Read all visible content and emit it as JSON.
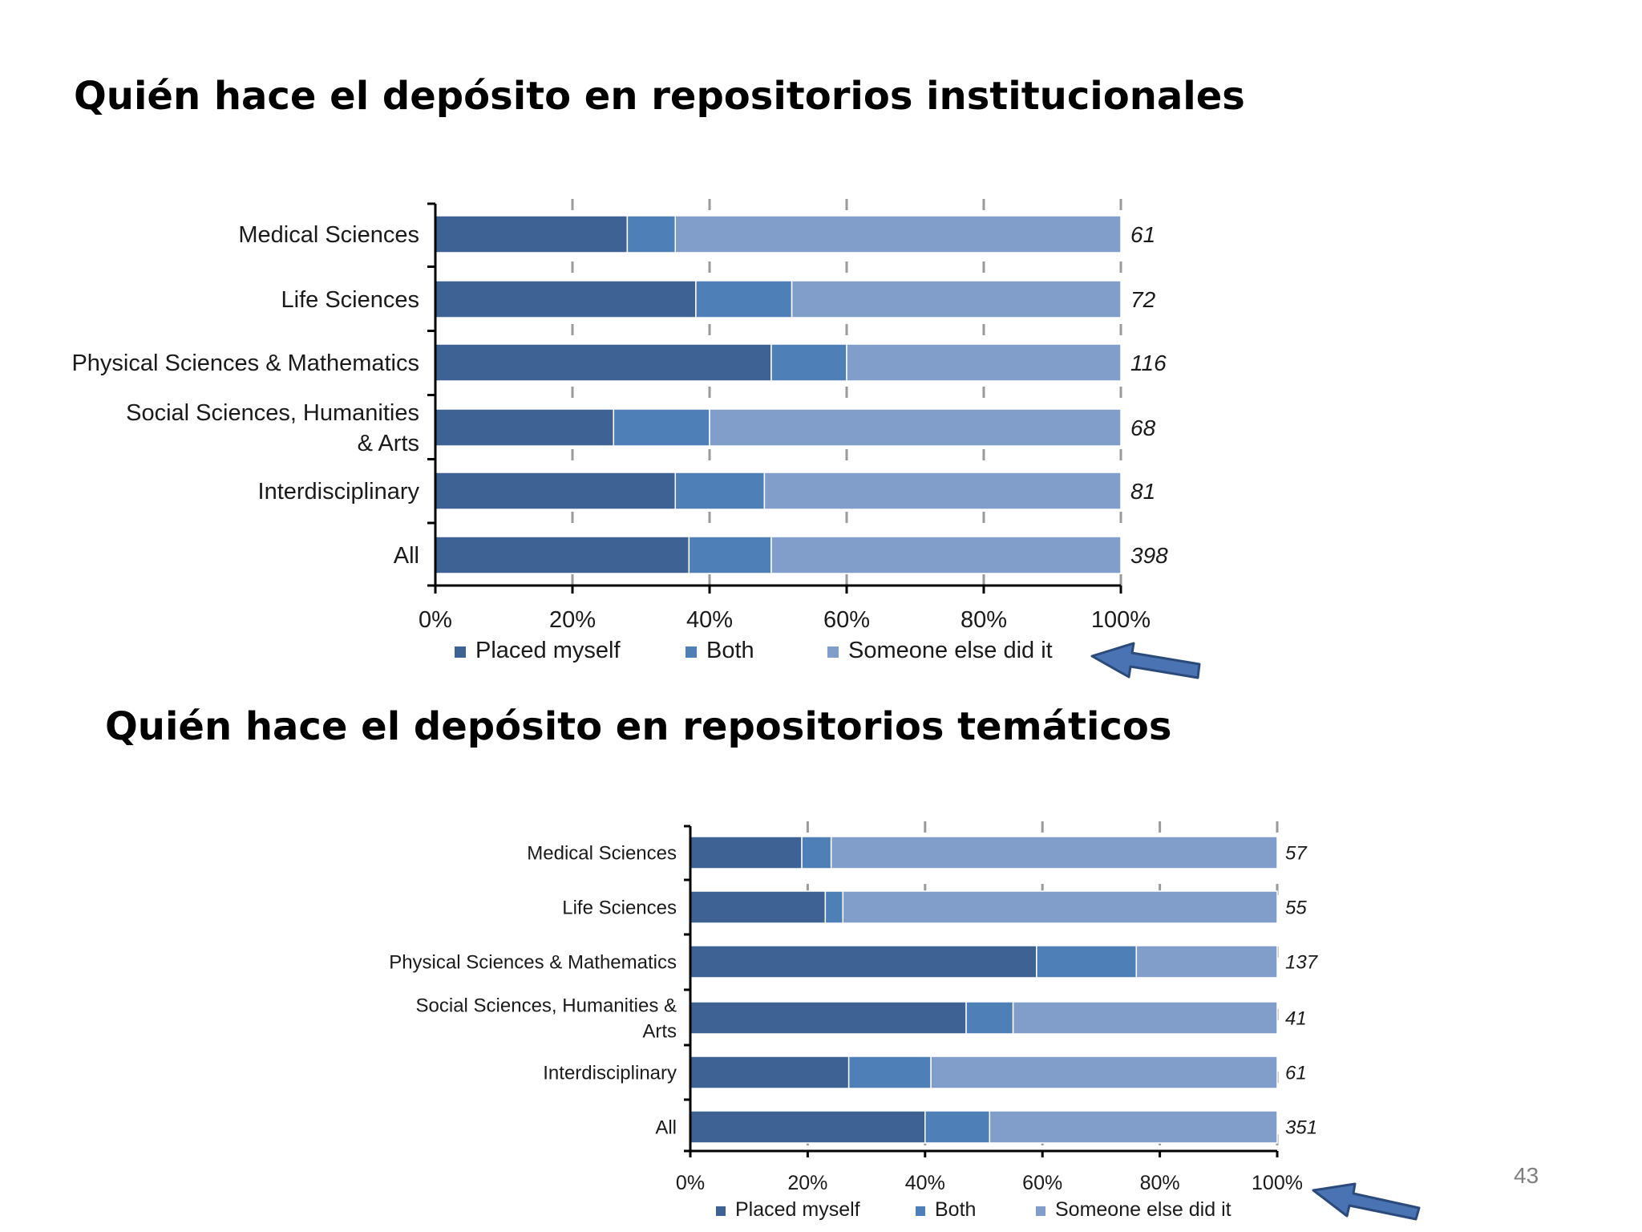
{
  "slide": {
    "title_institutional": "Quién hace el depósito  en repositorios institucionales",
    "title_thematic": "Quién hace el depósito  en repositorios  temáticos",
    "page_number": "43"
  },
  "colors": {
    "placed_myself": "#3d6293",
    "both": "#4f7fb7",
    "someone_else": "#819dca",
    "axis": "#000000",
    "gridline": "#9a9a9a",
    "arrow_fill": "#4a73b3",
    "arrow_stroke": "#2b4a7a"
  },
  "chart_data": [
    {
      "type": "bar",
      "orientation": "horizontal",
      "stacked": true,
      "title": "Quién hace el depósito  en repositorios institucionales",
      "categories": [
        "Medical Sciences",
        "Life Sciences",
        "Physical Sciences & Mathematics",
        "Social Sciences, Humanities & Arts",
        "Interdisciplinary",
        "All"
      ],
      "category_lines": [
        [
          "Medical Sciences"
        ],
        [
          "Life Sciences"
        ],
        [
          "Physical Sciences & Mathematics"
        ],
        [
          "Social Sciences, Humanities",
          "& Arts"
        ],
        [
          "Interdisciplinary"
        ],
        [
          "All"
        ]
      ],
      "series": [
        {
          "name": "Placed myself",
          "values": [
            28,
            38,
            49,
            26,
            35,
            37
          ]
        },
        {
          "name": "Both",
          "values": [
            7,
            14,
            11,
            14,
            13,
            12
          ]
        },
        {
          "name": "Someone else did it",
          "values": [
            65,
            48,
            40,
            60,
            52,
            51
          ]
        }
      ],
      "n_labels": [
        "61",
        "72",
        "116",
        "68",
        "81",
        "398"
      ],
      "xticks": [
        "0%",
        "20%",
        "40%",
        "60%",
        "80%",
        "100%"
      ],
      "xlim": [
        0,
        100
      ],
      "xlabel": "",
      "ylabel": "",
      "legend": [
        "Placed myself",
        "Both",
        "Someone else did it"
      ],
      "legend_position": "bottom"
    },
    {
      "type": "bar",
      "orientation": "horizontal",
      "stacked": true,
      "title": "Quién hace el depósito  en repositorios  temáticos",
      "categories": [
        "Medical Sciences",
        "Life Sciences",
        "Physical Sciences & Mathematics",
        "Social Sciences, Humanities & Arts",
        "Interdisciplinary",
        "All"
      ],
      "category_lines": [
        [
          "Medical Sciences"
        ],
        [
          "Life Sciences"
        ],
        [
          "Physical Sciences & Mathematics"
        ],
        [
          "Social Sciences, Humanities &",
          "Arts"
        ],
        [
          "Interdisciplinary"
        ],
        [
          "All"
        ]
      ],
      "series": [
        {
          "name": "Placed myself",
          "values": [
            19,
            23,
            59,
            47,
            27,
            40
          ]
        },
        {
          "name": "Both",
          "values": [
            5,
            3,
            17,
            8,
            14,
            11
          ]
        },
        {
          "name": "Someone else did it",
          "values": [
            76,
            74,
            24,
            45,
            59,
            49
          ]
        }
      ],
      "n_labels": [
        "57",
        "55",
        "137",
        "41",
        "61",
        "351"
      ],
      "xticks": [
        "0%",
        "20%",
        "40%",
        "60%",
        "80%",
        "100%"
      ],
      "xlim": [
        0,
        100
      ],
      "xlabel": "",
      "ylabel": "",
      "legend": [
        "Placed myself",
        "Both",
        "Someone else did it"
      ],
      "legend_position": "bottom"
    }
  ]
}
